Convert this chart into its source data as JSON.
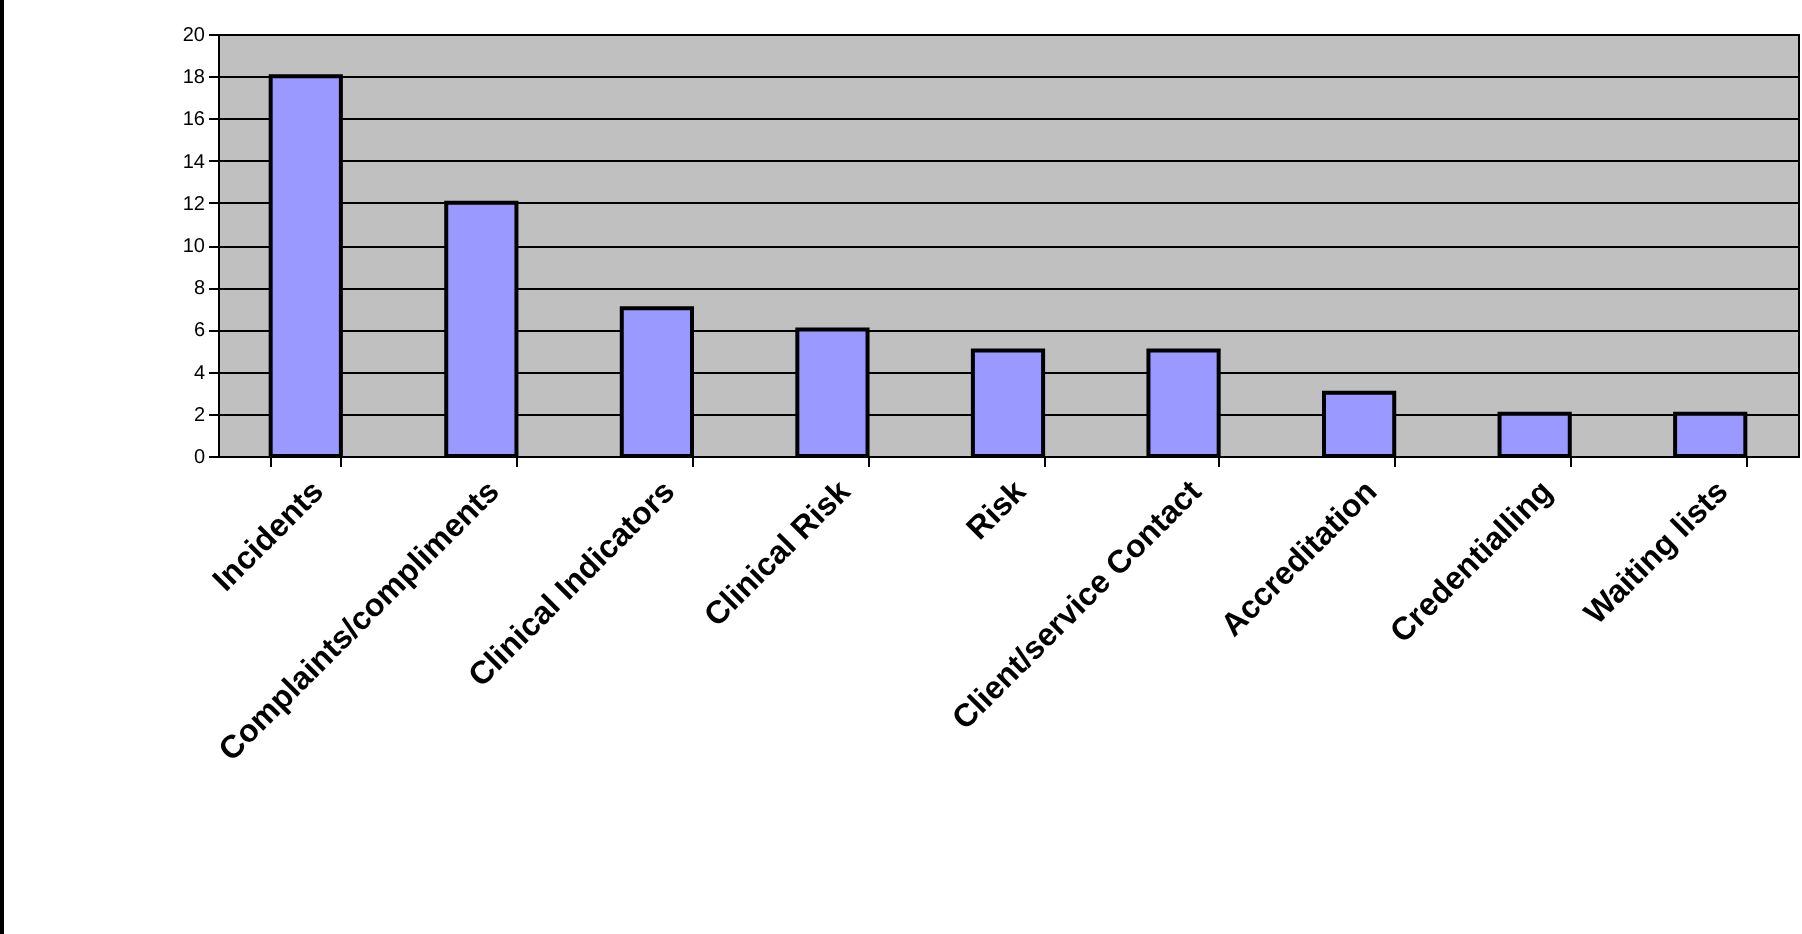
{
  "chart_data": {
    "type": "bar",
    "categories": [
      "Incidents",
      "Complaints/compliments",
      "Clinical Indicators",
      "Clinical Risk",
      "Risk",
      "Client/service Contact",
      "Accreditation",
      "Credentialling",
      "Waiting lists"
    ],
    "values": [
      18,
      12,
      7,
      6,
      5,
      5,
      3,
      2,
      2
    ],
    "color": "#9999ff",
    "ylim": [
      0,
      20
    ],
    "yticks": [
      0,
      2,
      4,
      6,
      8,
      10,
      12,
      14,
      16,
      18,
      20
    ],
    "grid": "y"
  }
}
